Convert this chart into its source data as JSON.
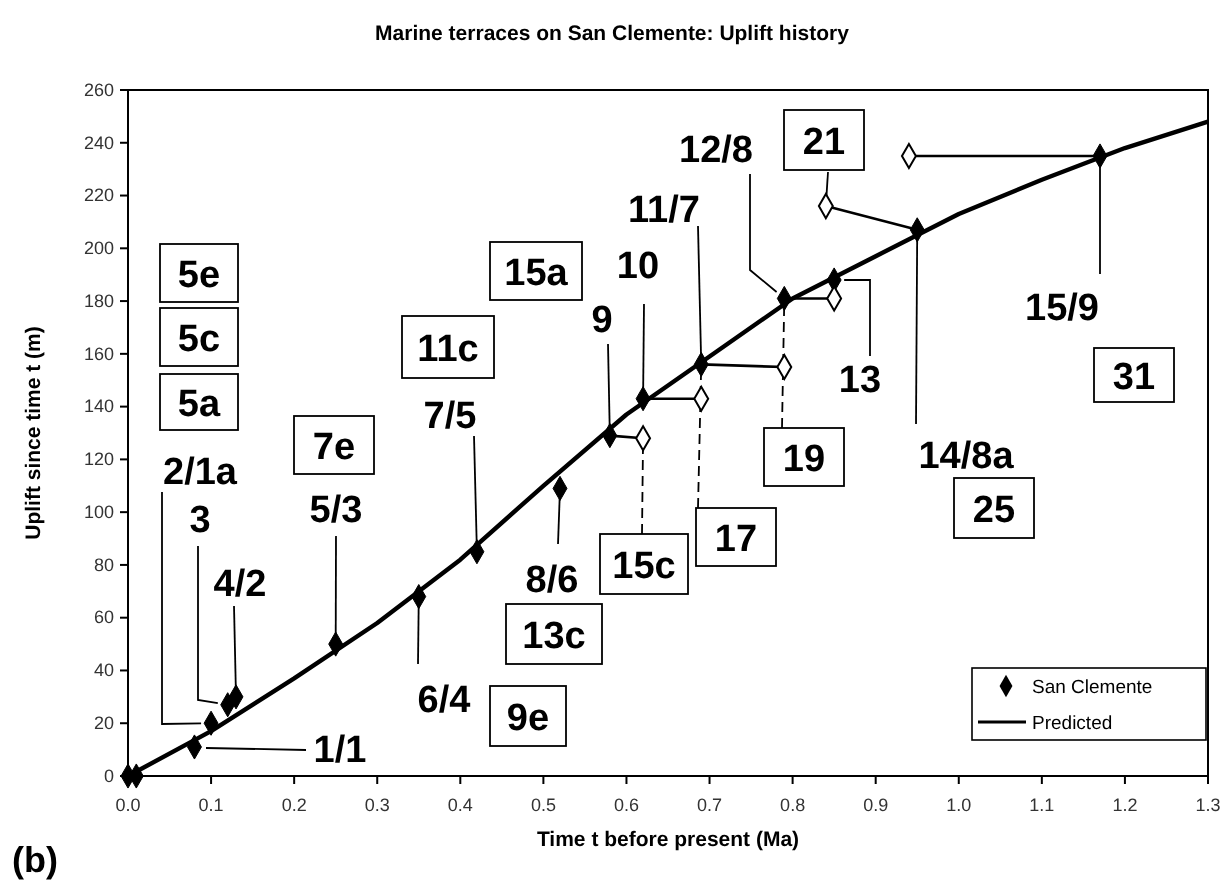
{
  "chart_data": {
    "type": "scatter",
    "title": "Marine terraces on San Clemente: Uplift history",
    "xlabel": "Time t before present (Ma)",
    "ylabel": "Uplift since time t (m)",
    "xlim": [
      0,
      1.3
    ],
    "xticks": [
      {
        "value": 0,
        "label": "0.0"
      },
      0.1,
      0.2,
      0.3,
      0.4,
      0.5,
      0.6,
      0.7,
      0.8,
      0.9,
      {
        "value": 1,
        "label": "1.0"
      },
      1.1,
      1.2,
      1.3
    ],
    "ylim": [
      0,
      260
    ],
    "yticks": [
      0,
      20,
      40,
      60,
      80,
      100,
      120,
      140,
      160,
      180,
      200,
      220,
      240,
      260
    ],
    "grid": false,
    "legend": "bottom right",
    "series": [
      {
        "name": "San Clemente",
        "marker": "diamond",
        "color": "#000000",
        "x": [
          0,
          0.01,
          0.08,
          0.1,
          0.12,
          0.13,
          0.25,
          0.35,
          0.42,
          0.52,
          0.58,
          0.62,
          0.69,
          0.79,
          0.85,
          0.95,
          1.17
        ],
        "values": [
          0,
          0,
          11,
          20,
          27,
          30,
          50,
          68,
          85,
          109,
          129,
          143,
          156,
          181,
          188,
          207,
          235
        ]
      },
      {
        "marker": "diamond",
        "color": "#000000",
        "x": [
          0.62,
          0.69,
          0.79,
          0.85,
          0.84,
          0.94
        ],
        "values": [
          128,
          143,
          155,
          181,
          216,
          235
        ]
      },
      {
        "name": "Predicted",
        "type": "line",
        "color": "#000000",
        "x": [
          0,
          0.1,
          0.2,
          0.3,
          0.4,
          0.5,
          0.6,
          0.7,
          0.8,
          0.9,
          1.0,
          1.1,
          1.2,
          1.3
        ],
        "values": [
          0,
          17,
          37,
          58,
          82,
          110,
          137,
          159,
          181,
          197,
          213,
          226,
          238,
          248
        ]
      }
    ],
    "annotations": [
      "5e",
      "5c",
      "5a",
      {
        "text": "2/1a",
        "x": 0.1,
        "y": 20
      },
      {
        "text": "3",
        "x": 0.12,
        "y": 27
      },
      {
        "text": "4/2",
        "x": 0.13,
        "y": 30
      },
      "1/1",
      "7e",
      {
        "text": "5/3",
        "x": 0.25,
        "y": 50
      },
      {
        "text": "6/4",
        "x": 0.35,
        "y": 68
      },
      "9e",
      "11c",
      {
        "text": "7/5",
        "x": 0.42,
        "y": 85
      },
      {
        "text": "8/6",
        "x": 0.52,
        "y": 109
      },
      "13c",
      "15a",
      {
        "text": "9",
        "x": 0.58,
        "y": 129
      },
      {
        "text": "15c",
        "x": 0.62,
        "y": 128
      },
      {
        "text": "10",
        "x": 0.62,
        "y": 143
      },
      {
        "text": "17",
        "x": 0.69,
        "y": 156
      },
      {
        "text": "11/7",
        "x": 0.69,
        "y": 156
      },
      {
        "text": "12/8",
        "x": 0.79,
        "y": 181
      },
      {
        "text": "19",
        "x": 0.79,
        "y": 181
      },
      {
        "text": "21",
        "x": 0.84,
        "y": 216
      },
      {
        "text": "13",
        "x": 0.85,
        "y": 188
      },
      {
        "text": "14/8a",
        "x": 0.95,
        "y": 207
      },
      "25",
      {
        "text": "15/9",
        "x": 1.17,
        "y": 235
      },
      "31",
      "(b)"
    ]
  }
}
